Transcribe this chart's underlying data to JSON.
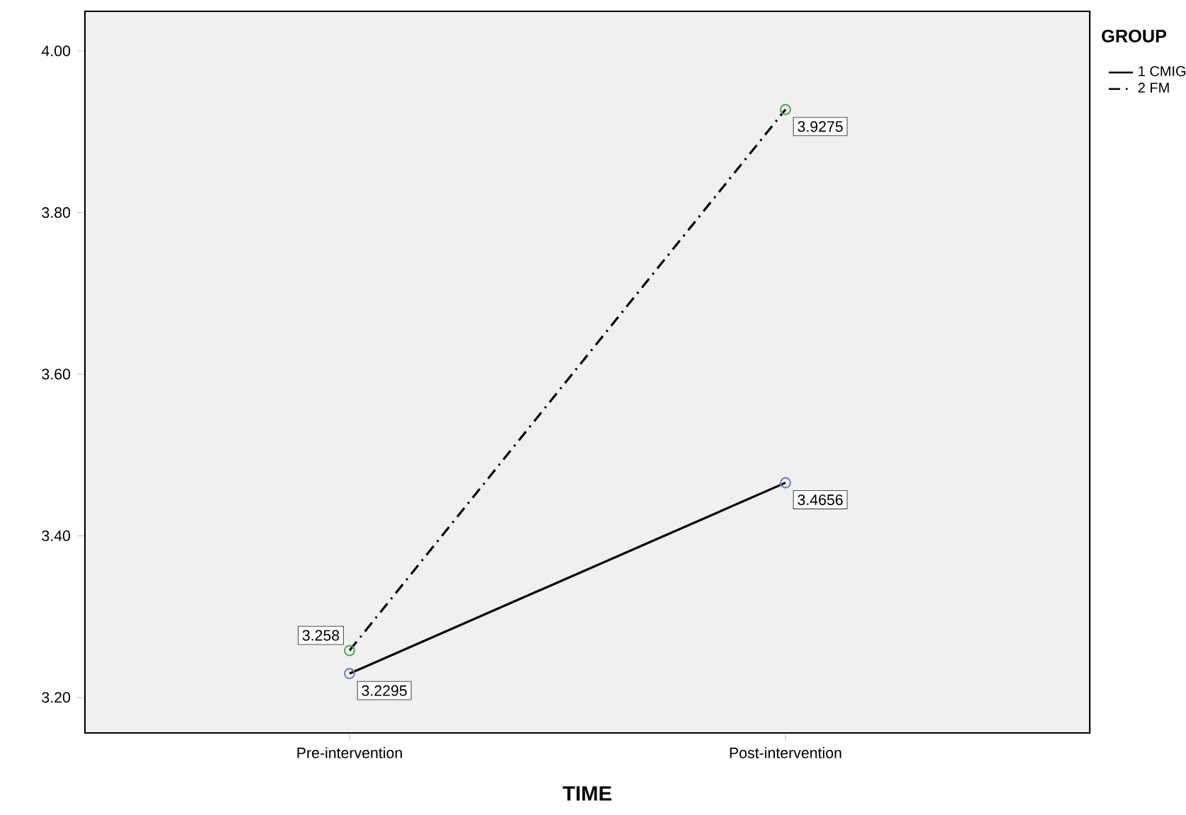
{
  "chart_data": {
    "type": "line",
    "xlabel": "TIME",
    "legend_title": "GROUP",
    "categories": [
      "Pre-intervention",
      "Post-intervention"
    ],
    "series": [
      {
        "name": "1 CMIG",
        "color": "#000000",
        "colors": [
          "#6a86c6",
          "#6a86c6"
        ],
        "line_style": "solid",
        "values": [
          3.2295,
          3.4656
        ]
      },
      {
        "name": "2 FM",
        "color": "#000000",
        "colors": [
          "#4cb050",
          "#4cb050"
        ],
        "line_style": "dashdot",
        "values": [
          3.258,
          3.9275
        ]
      }
    ],
    "ylim": [
      3.156,
      4.049
    ],
    "yticks": [
      {
        "value": 3.2,
        "label": "3.20"
      },
      {
        "value": 3.4,
        "label": "3.40"
      },
      {
        "value": 3.6,
        "label": "3.60"
      },
      {
        "value": 3.8,
        "label": "3.80"
      },
      {
        "value": 4.0,
        "label": "4.00"
      }
    ],
    "marker": "circle",
    "grid": false,
    "legend": "top right",
    "data_labels": true
  }
}
